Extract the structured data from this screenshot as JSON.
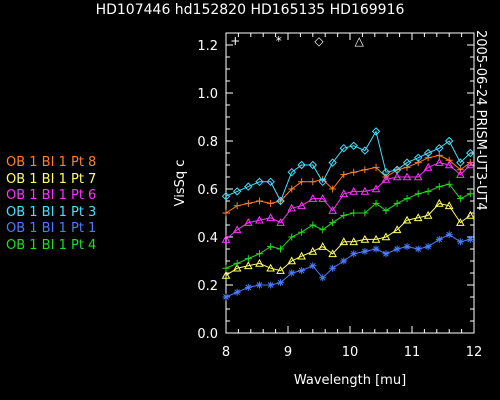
{
  "chart_data": {
    "type": "line",
    "title": "HD107446 hd152820 HD165135 HD169916",
    "side_label": "2005-06-24 PRISM-UT3-UT4",
    "xlabel": "Wavelength [mu]",
    "ylabel": "VisSq c",
    "xlim": [
      8,
      12
    ],
    "ylim": [
      0,
      1.25
    ],
    "xticks": [
      "8",
      "9",
      "10",
      "11",
      "12"
    ],
    "yticks": [
      "0.0",
      "0.2",
      "0.4",
      "0.6",
      "0.8",
      "1.0",
      "1.2"
    ],
    "symbol_key": [
      "+",
      "*",
      "◇",
      "△"
    ],
    "x": [
      8.0,
      8.18,
      8.36,
      8.54,
      8.72,
      8.88,
      9.06,
      9.22,
      9.4,
      9.56,
      9.72,
      9.9,
      10.06,
      10.24,
      10.42,
      10.58,
      10.76,
      10.92,
      11.1,
      11.26,
      11.44,
      11.6,
      11.78,
      11.94
    ],
    "series": [
      {
        "name": "OB 1 BI 1 Pt 8",
        "color": "#ff7f2a",
        "marker": "+",
        "values": [
          0.5,
          0.53,
          0.54,
          0.55,
          0.54,
          0.55,
          0.6,
          0.63,
          0.63,
          0.64,
          0.6,
          0.66,
          0.67,
          0.68,
          0.69,
          0.65,
          0.68,
          0.69,
          0.71,
          0.73,
          0.74,
          0.72,
          0.68,
          0.71
        ]
      },
      {
        "name": "OB 1 BI 1 Pt 7",
        "color": "#ffff66",
        "marker": "△",
        "values": [
          0.24,
          0.27,
          0.28,
          0.29,
          0.27,
          0.26,
          0.3,
          0.32,
          0.34,
          0.36,
          0.33,
          0.38,
          0.38,
          0.39,
          0.39,
          0.4,
          0.43,
          0.47,
          0.48,
          0.49,
          0.54,
          0.53,
          0.46,
          0.49
        ]
      },
      {
        "name": "OB 1 BI 1 Pt 6",
        "color": "#ff33ff",
        "marker": "△",
        "values": [
          0.39,
          0.43,
          0.46,
          0.47,
          0.48,
          0.46,
          0.52,
          0.53,
          0.56,
          0.56,
          0.51,
          0.58,
          0.59,
          0.59,
          0.6,
          0.64,
          0.65,
          0.65,
          0.65,
          0.69,
          0.71,
          0.7,
          0.66,
          0.7
        ]
      },
      {
        "name": "OB 1 BI 1 Pt 3",
        "color": "#44e0ff",
        "marker": "◇",
        "values": [
          0.57,
          0.59,
          0.61,
          0.63,
          0.63,
          0.55,
          0.67,
          0.7,
          0.7,
          0.63,
          0.71,
          0.77,
          0.78,
          0.76,
          0.84,
          0.67,
          0.68,
          0.71,
          0.73,
          0.75,
          0.77,
          0.8,
          0.71,
          0.75
        ]
      },
      {
        "name": "OB 1 BI 1 Pt 1",
        "color": "#4a7aff",
        "marker": "*",
        "values": [
          0.15,
          0.17,
          0.19,
          0.2,
          0.2,
          0.21,
          0.25,
          0.26,
          0.28,
          0.23,
          0.27,
          0.3,
          0.33,
          0.34,
          0.35,
          0.33,
          0.35,
          0.36,
          0.35,
          0.36,
          0.39,
          0.41,
          0.38,
          0.39
        ]
      },
      {
        "name": "OB 1 BI 1 Pt 4",
        "color": "#22dd22",
        "marker": "+",
        "values": [
          0.27,
          0.29,
          0.31,
          0.33,
          0.36,
          0.35,
          0.4,
          0.42,
          0.45,
          0.43,
          0.46,
          0.49,
          0.5,
          0.5,
          0.54,
          0.51,
          0.54,
          0.56,
          0.58,
          0.59,
          0.61,
          0.62,
          0.56,
          0.58
        ]
      }
    ]
  }
}
